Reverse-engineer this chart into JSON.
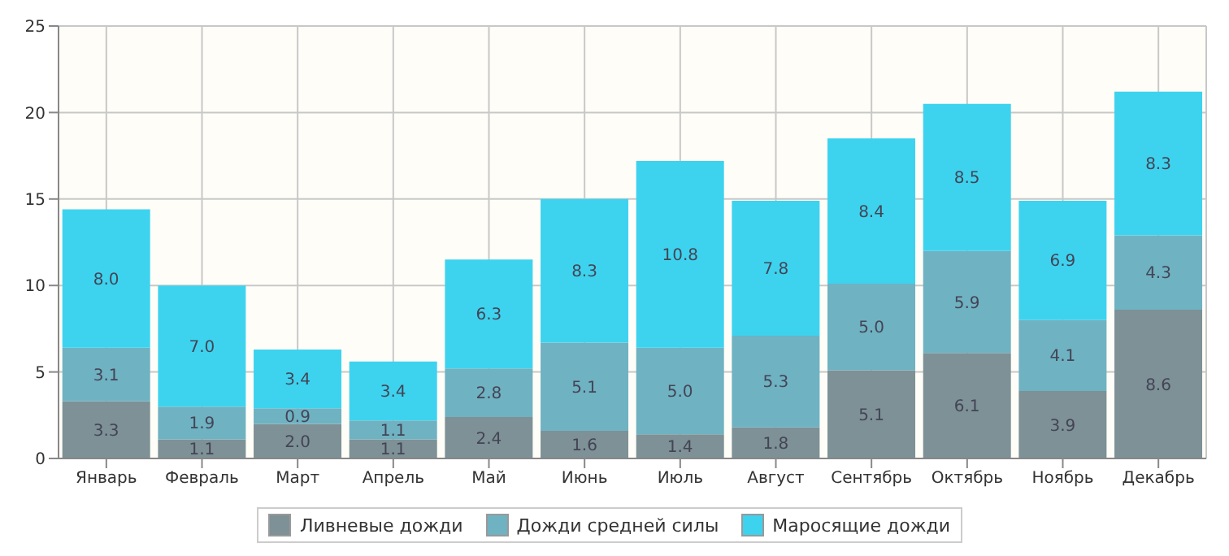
{
  "chart_data": {
    "type": "bar",
    "stacked": true,
    "categories": [
      "Январь",
      "Февраль",
      "Март",
      "Апрель",
      "Май",
      "Июнь",
      "Июль",
      "Август",
      "Сентябрь",
      "Октябрь",
      "Ноябрь",
      "Декабрь"
    ],
    "series": [
      {
        "name": "Ливневые дожди",
        "color": "#7d9196",
        "values": [
          3.3,
          1.1,
          2.0,
          1.1,
          2.4,
          1.6,
          1.4,
          1.8,
          5.1,
          6.1,
          3.9,
          8.6
        ],
        "value_labels": [
          "3.3",
          "1.1",
          "2.0",
          "1.1",
          "2.4",
          "1.6",
          "1.4",
          "1.8",
          "5.1",
          "6.1",
          "3.9",
          "8.6"
        ]
      },
      {
        "name": "Дожди средней силы",
        "color": "#6fb2c2",
        "values": [
          3.1,
          1.9,
          0.9,
          1.1,
          2.8,
          5.1,
          5.0,
          5.3,
          5.0,
          5.9,
          4.1,
          4.3
        ],
        "value_labels": [
          "3.1",
          "1.9",
          "0.9",
          "1.1",
          "2.8",
          "5.1",
          "5.0",
          "5.3",
          "5.0",
          "5.9",
          "4.1",
          "4.3"
        ]
      },
      {
        "name": "Маросящие дожди",
        "color": "#3dd3ef",
        "values": [
          8.0,
          7.0,
          3.4,
          3.4,
          6.3,
          8.3,
          10.8,
          7.8,
          8.4,
          8.5,
          6.9,
          8.3
        ],
        "value_labels": [
          "8.0",
          "7.0",
          "3.4",
          "3.4",
          "6.3",
          "8.3",
          "10.8",
          "7.8",
          "8.4",
          "8.5",
          "6.9",
          "8.3"
        ]
      }
    ],
    "ylim": [
      0,
      25
    ],
    "yticks": [
      0,
      5,
      10,
      15,
      20,
      25
    ],
    "grid": true,
    "legend": "bottom"
  }
}
